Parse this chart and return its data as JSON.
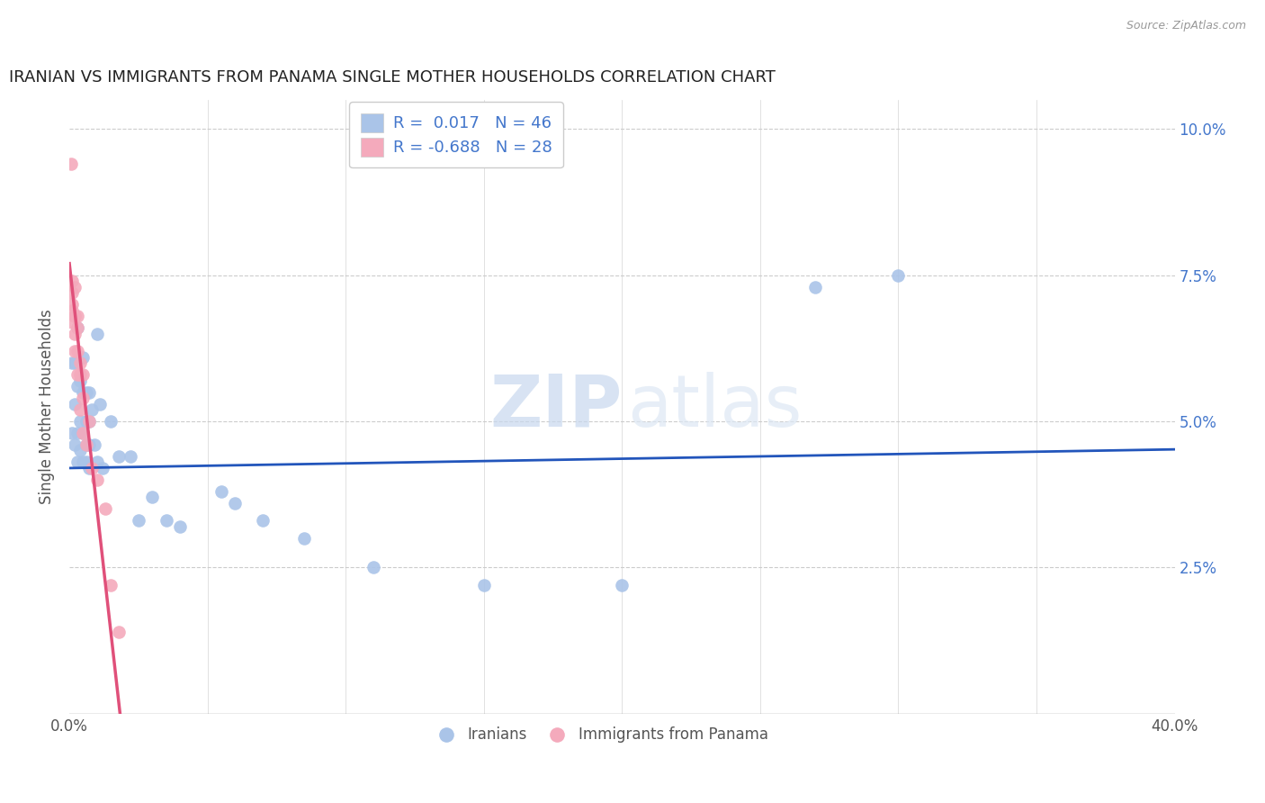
{
  "title": "IRANIAN VS IMMIGRANTS FROM PANAMA SINGLE MOTHER HOUSEHOLDS CORRELATION CHART",
  "source": "Source: ZipAtlas.com",
  "ylabel": "Single Mother Households",
  "xlim": [
    0.0,
    0.4
  ],
  "ylim": [
    0.0,
    0.105
  ],
  "xticks_major": [
    0.0,
    0.4
  ],
  "xticks_minor": [
    0.05,
    0.1,
    0.15,
    0.2,
    0.25,
    0.3,
    0.35
  ],
  "yticks": [
    0.0,
    0.025,
    0.05,
    0.075,
    0.1
  ],
  "ytick_labels": [
    "",
    "2.5%",
    "5.0%",
    "7.5%",
    "10.0%"
  ],
  "blue_R": 0.017,
  "blue_N": 46,
  "pink_R": -0.688,
  "pink_N": 28,
  "blue_color": "#aac4e8",
  "pink_color": "#f4aabc",
  "blue_line_color": "#2255bb",
  "pink_line_color": "#e0507a",
  "watermark_zip": "ZIP",
  "watermark_atlas": "atlas",
  "legend_label_blue": "Iranians",
  "legend_label_pink": "Immigrants from Panama",
  "blue_points_x": [
    0.001,
    0.001,
    0.002,
    0.002,
    0.002,
    0.003,
    0.003,
    0.003,
    0.003,
    0.004,
    0.004,
    0.004,
    0.005,
    0.005,
    0.005,
    0.005,
    0.006,
    0.006,
    0.006,
    0.006,
    0.007,
    0.007,
    0.007,
    0.007,
    0.008,
    0.009,
    0.01,
    0.01,
    0.011,
    0.012,
    0.015,
    0.018,
    0.022,
    0.025,
    0.03,
    0.035,
    0.04,
    0.055,
    0.06,
    0.07,
    0.085,
    0.11,
    0.15,
    0.2,
    0.27,
    0.3
  ],
  "blue_points_y": [
    0.06,
    0.048,
    0.06,
    0.053,
    0.046,
    0.066,
    0.056,
    0.048,
    0.043,
    0.057,
    0.05,
    0.045,
    0.061,
    0.055,
    0.048,
    0.043,
    0.055,
    0.05,
    0.046,
    0.043,
    0.055,
    0.05,
    0.046,
    0.042,
    0.052,
    0.046,
    0.065,
    0.043,
    0.053,
    0.042,
    0.05,
    0.044,
    0.044,
    0.033,
    0.037,
    0.033,
    0.032,
    0.038,
    0.036,
    0.033,
    0.03,
    0.025,
    0.022,
    0.022,
    0.073,
    0.075
  ],
  "pink_points_x": [
    0.0005,
    0.001,
    0.001,
    0.001,
    0.001,
    0.001,
    0.002,
    0.002,
    0.002,
    0.002,
    0.002,
    0.003,
    0.003,
    0.003,
    0.003,
    0.004,
    0.004,
    0.004,
    0.005,
    0.005,
    0.005,
    0.006,
    0.007,
    0.008,
    0.01,
    0.013,
    0.015,
    0.018
  ],
  "pink_points_y": [
    0.094,
    0.074,
    0.072,
    0.07,
    0.069,
    0.067,
    0.073,
    0.068,
    0.068,
    0.065,
    0.062,
    0.068,
    0.066,
    0.062,
    0.058,
    0.06,
    0.058,
    0.052,
    0.058,
    0.054,
    0.048,
    0.046,
    0.05,
    0.042,
    0.04,
    0.035,
    0.022,
    0.014
  ],
  "blue_line_y_intercept": 0.042,
  "blue_line_slope": 0.008,
  "pink_line_y_intercept": 0.077,
  "pink_line_slope": -4.2
}
